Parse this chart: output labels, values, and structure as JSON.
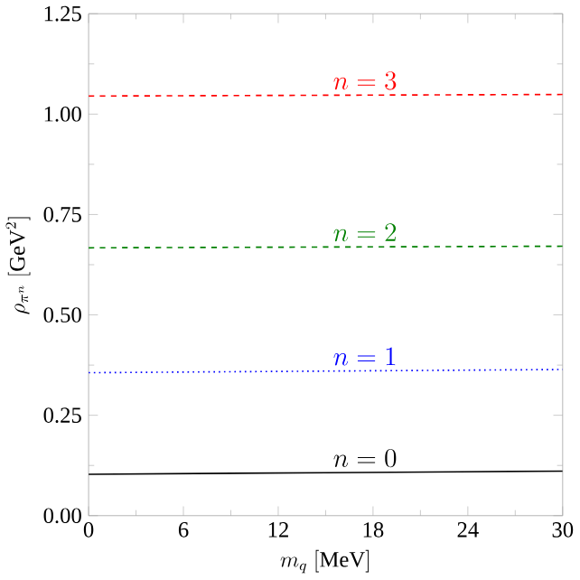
{
  "chart_data": {
    "type": "line",
    "xlabel": "m_q\\ [\\mathrm{MeV}]",
    "ylabel": "\\rho_{\\pi^n}\\ [\\mathrm{GeV}^2]",
    "xlim": [
      0,
      30
    ],
    "ylim": [
      0,
      1.25
    ],
    "xticks": [
      0,
      6,
      12,
      18,
      24,
      30
    ],
    "yticks": [
      {
        "value": 0,
        "label": "0.00"
      },
      {
        "value": 0.25,
        "label": "0.25"
      },
      {
        "value": 0.5,
        "label": "0.50"
      },
      {
        "value": 0.75,
        "label": "0.75"
      },
      {
        "value": 1,
        "label": "1.00"
      },
      {
        "value": 1.25,
        "label": "1.25"
      }
    ],
    "grid": false,
    "marker": "none",
    "series": [
      {
        "name": "n=0",
        "color": "#000000",
        "line_style": "solid",
        "x": [
          0,
          15,
          30
        ],
        "values": [
          0.103,
          0.107,
          0.111
        ]
      },
      {
        "name": "n=1",
        "color": "#0000ff",
        "line_style": "dotted",
        "x": [
          0,
          15,
          30
        ],
        "values": [
          0.356,
          0.36,
          0.364
        ]
      },
      {
        "name": "n=2",
        "color": "#008000",
        "line_style": "dashed",
        "x": [
          0,
          15,
          30
        ],
        "values": [
          0.667,
          0.669,
          0.671
        ]
      },
      {
        "name": "n=3",
        "color": "#ff0000",
        "line_style": "dashed",
        "x": [
          0,
          15,
          30
        ],
        "values": [
          1.045,
          1.047,
          1.049
        ]
      }
    ]
  }
}
